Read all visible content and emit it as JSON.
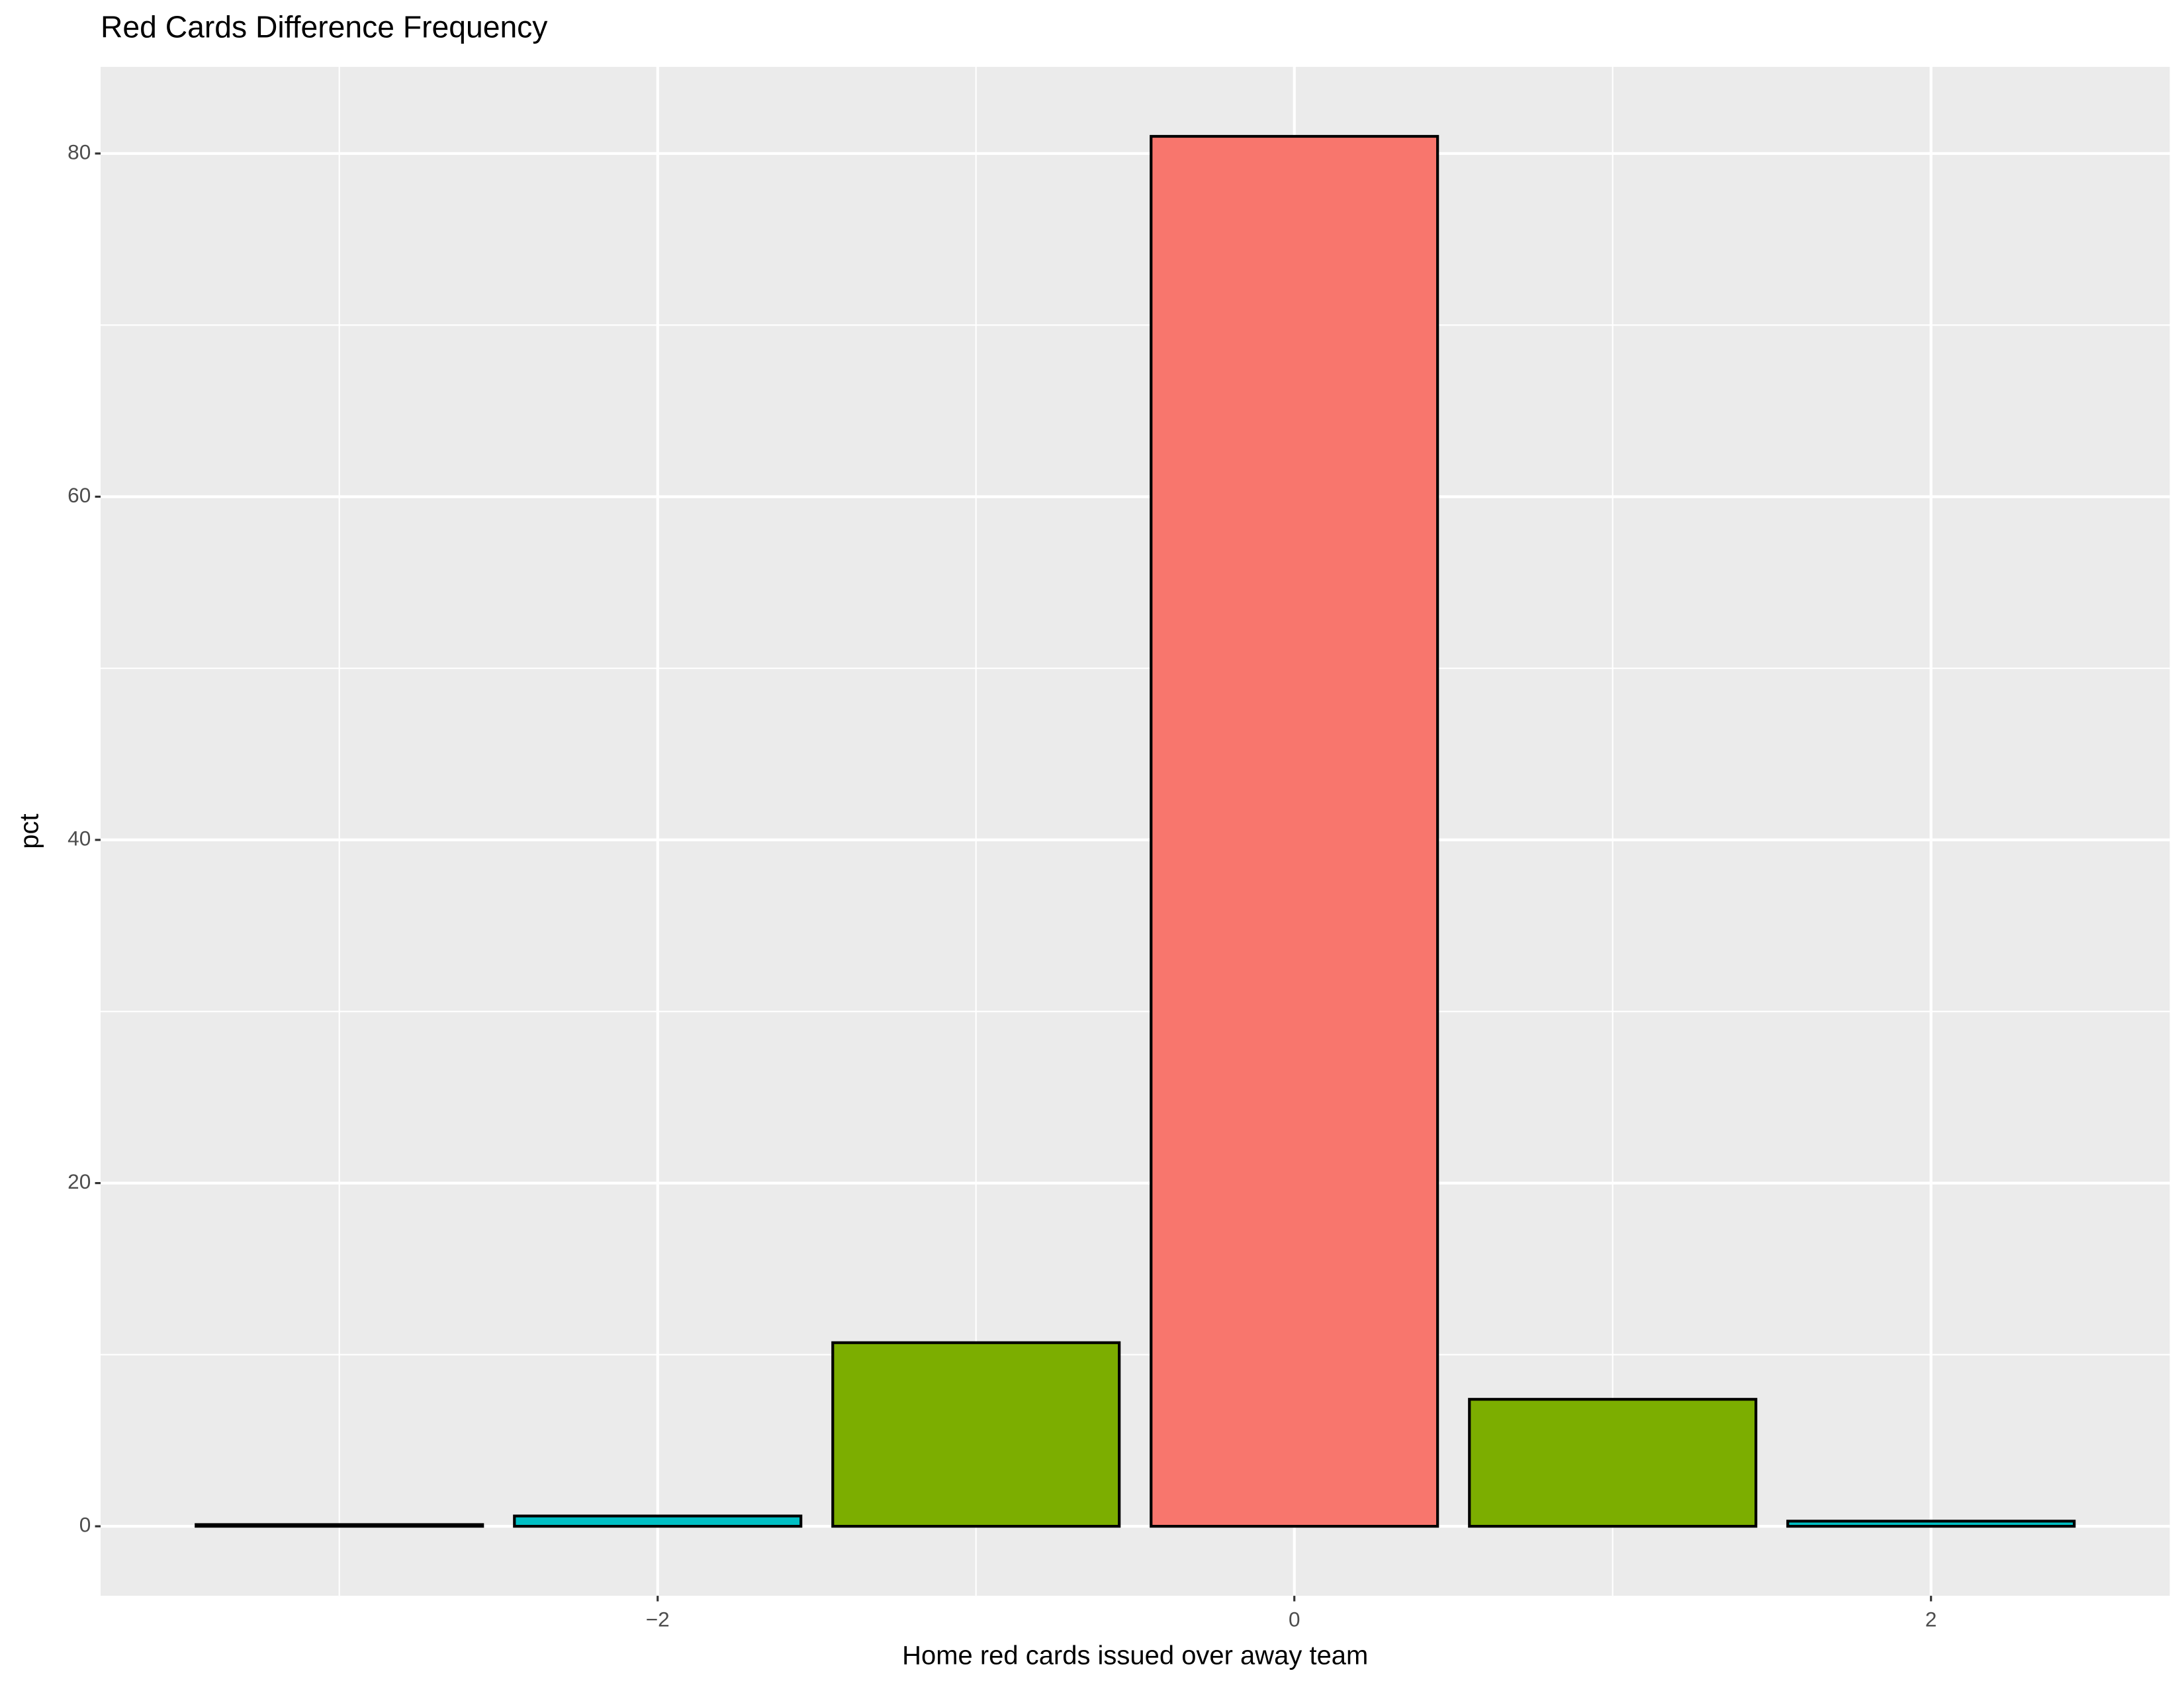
{
  "chart_data": {
    "type": "bar",
    "title": "Red Cards Difference Frequency",
    "x_label": "Home red cards issued over away team",
    "y_label": "pct",
    "x": [
      -3,
      -2,
      -1,
      0,
      1,
      2
    ],
    "values": [
      0.1,
      0.6,
      10.7,
      81,
      7.4,
      0.3
    ],
    "colors": [
      "#C77CFF",
      "#00BFC4",
      "#7CAE00",
      "#F8766D",
      "#7CAE00",
      "#00BFC4"
    ],
    "xlim": [
      -3.75,
      2.75
    ],
    "xticks": [
      {
        "value": -2,
        "label": "−2"
      },
      0,
      2
    ],
    "ylim": [
      -4.05,
      85.05
    ],
    "yticks": [
      0,
      20,
      40,
      60,
      80
    ],
    "grid": true
  }
}
